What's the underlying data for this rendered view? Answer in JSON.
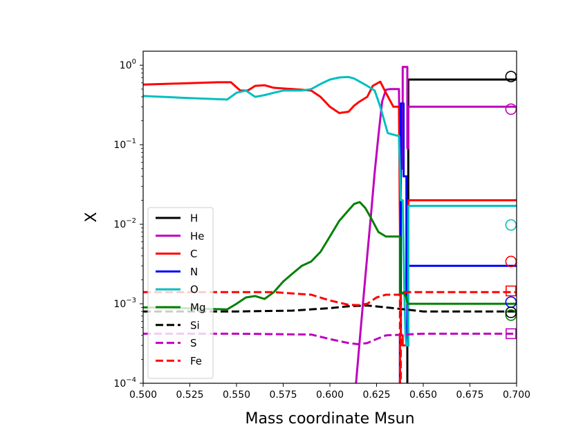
{
  "chart_data": {
    "type": "line",
    "title": "",
    "xlabel": "Mass coordinate Msun",
    "ylabel": "X",
    "xlim": [
      0.5,
      0.7
    ],
    "ylim": [
      0.0001,
      1.5
    ],
    "yscale": "log",
    "grid": false,
    "legend_position": "lower-left",
    "x_ticks": [
      "0.500",
      "0.525",
      "0.550",
      "0.575",
      "0.600",
      "0.625",
      "0.650",
      "0.675",
      "0.700"
    ],
    "x_tick_values": [
      0.5,
      0.525,
      0.55,
      0.575,
      0.6,
      0.625,
      0.65,
      0.675,
      0.7
    ],
    "y_ticks": [
      {
        "value": 0.0001,
        "base": "10",
        "exp": "−4"
      },
      {
        "value": 0.001,
        "base": "10",
        "exp": "−3"
      },
      {
        "value": 0.01,
        "base": "10",
        "exp": "−2"
      },
      {
        "value": 0.1,
        "base": "10",
        "exp": "−1"
      },
      {
        "value": 1,
        "base": "10",
        "exp": "0"
      }
    ],
    "series": [
      {
        "name": "H",
        "color": "#000000",
        "dash": false,
        "x": [
          0.6415,
          0.6415,
          0.642,
          0.642,
          0.7
        ],
        "y": [
          0.0001,
          0.0003,
          0.0003,
          0.66,
          0.66
        ]
      },
      {
        "name": "He",
        "color": "#bf00bf",
        "dash": false,
        "x": [
          0.614,
          0.616,
          0.618,
          0.62,
          0.622,
          0.624,
          0.626,
          0.628,
          0.63,
          0.632,
          0.635,
          0.637,
          0.6375,
          0.639,
          0.639,
          0.6415,
          0.6415,
          0.642,
          0.642,
          0.7
        ],
        "y": [
          0.0001,
          0.00035,
          0.0012,
          0.004,
          0.013,
          0.045,
          0.13,
          0.35,
          0.49,
          0.5,
          0.5,
          0.5,
          0.05,
          0.05,
          0.95,
          0.95,
          0.09,
          0.09,
          0.3,
          0.3
        ]
      },
      {
        "name": "C",
        "color": "#ff0000",
        "dash": false,
        "x": [
          0.5,
          0.52,
          0.54,
          0.547,
          0.552,
          0.556,
          0.56,
          0.565,
          0.57,
          0.575,
          0.58,
          0.585,
          0.59,
          0.595,
          0.6,
          0.605,
          0.61,
          0.613,
          0.616,
          0.62,
          0.623,
          0.627,
          0.63,
          0.634,
          0.637,
          0.638,
          0.639,
          0.639,
          0.6415,
          0.642,
          0.642,
          0.7
        ],
        "y": [
          0.57,
          0.59,
          0.61,
          0.61,
          0.48,
          0.48,
          0.55,
          0.56,
          0.52,
          0.51,
          0.5,
          0.49,
          0.48,
          0.4,
          0.3,
          0.25,
          0.26,
          0.31,
          0.35,
          0.4,
          0.55,
          0.62,
          0.45,
          0.3,
          0.3,
          0.0004,
          0.0004,
          0.0003,
          0.0003,
          0.0003,
          0.02,
          0.02
        ]
      },
      {
        "name": "N",
        "color": "#0000ff",
        "dash": false,
        "x": [
          0.6375,
          0.6375,
          0.638,
          0.638,
          0.6395,
          0.6395,
          0.641,
          0.641,
          0.6415,
          0.6415,
          0.642,
          0.642,
          0.7
        ],
        "y": [
          0.0001,
          0.0004,
          0.0004,
          0.33,
          0.33,
          0.04,
          0.04,
          0.0012,
          0.0012,
          0.0003,
          0.0003,
          0.003,
          0.003
        ]
      },
      {
        "name": "O",
        "color": "#00bfbf",
        "dash": false,
        "x": [
          0.5,
          0.52,
          0.545,
          0.55,
          0.555,
          0.56,
          0.565,
          0.57,
          0.575,
          0.58,
          0.585,
          0.59,
          0.595,
          0.6,
          0.605,
          0.61,
          0.613,
          0.616,
          0.62,
          0.624,
          0.627,
          0.631,
          0.636,
          0.637,
          0.638,
          0.639,
          0.64,
          0.6405,
          0.641,
          0.6415,
          0.642,
          0.642,
          0.7
        ],
        "y": [
          0.41,
          0.39,
          0.37,
          0.45,
          0.48,
          0.4,
          0.42,
          0.45,
          0.48,
          0.48,
          0.48,
          0.5,
          0.58,
          0.66,
          0.7,
          0.71,
          0.68,
          0.62,
          0.55,
          0.48,
          0.3,
          0.14,
          0.13,
          0.13,
          0.02,
          0.02,
          0.0011,
          0.0004,
          0.0003,
          0.0003,
          0.0003,
          0.017,
          0.017
        ]
      },
      {
        "name": "Mg",
        "color": "#008000",
        "dash": false,
        "x": [
          0.5,
          0.52,
          0.545,
          0.55,
          0.555,
          0.56,
          0.565,
          0.57,
          0.575,
          0.58,
          0.585,
          0.59,
          0.595,
          0.6,
          0.605,
          0.61,
          0.613,
          0.616,
          0.619,
          0.622,
          0.626,
          0.63,
          0.634,
          0.637,
          0.6375,
          0.6375,
          0.638,
          0.6395,
          0.64,
          0.641,
          0.6415,
          0.642,
          0.642,
          0.7
        ],
        "y": [
          0.0009,
          0.00088,
          0.00085,
          0.001,
          0.0012,
          0.00125,
          0.00115,
          0.0014,
          0.0019,
          0.0024,
          0.003,
          0.0034,
          0.0045,
          0.007,
          0.011,
          0.015,
          0.018,
          0.019,
          0.016,
          0.012,
          0.008,
          0.007,
          0.007,
          0.007,
          0.007,
          0.0013,
          0.0013,
          0.0014,
          0.0013,
          0.0012,
          0.001,
          0.001,
          0.001,
          0.001
        ]
      },
      {
        "name": "Si",
        "color": "#000000",
        "dash": true,
        "x": [
          0.5,
          0.55,
          0.58,
          0.6,
          0.61,
          0.62,
          0.63,
          0.64,
          0.65,
          0.7
        ],
        "y": [
          0.0008,
          0.0008,
          0.00082,
          0.00088,
          0.00093,
          0.00095,
          0.0009,
          0.00085,
          0.0008,
          0.0008
        ]
      },
      {
        "name": "S",
        "color": "#bf00bf",
        "dash": true,
        "x": [
          0.5,
          0.55,
          0.59,
          0.6,
          0.61,
          0.615,
          0.62,
          0.625,
          0.63,
          0.64,
          0.65,
          0.7
        ],
        "y": [
          0.00042,
          0.00042,
          0.00041,
          0.00036,
          0.00032,
          0.00031,
          0.00032,
          0.00036,
          0.0004,
          0.00041,
          0.00042,
          0.00042
        ]
      },
      {
        "name": "Fe",
        "color": "#ff0000",
        "dash": true,
        "x": [
          0.5,
          0.57,
          0.59,
          0.6,
          0.61,
          0.615,
          0.62,
          0.625,
          0.63,
          0.637,
          0.6375,
          0.6375,
          0.638,
          0.638,
          0.639,
          0.64,
          0.65,
          0.7
        ],
        "y": [
          0.0014,
          0.0014,
          0.0013,
          0.0011,
          0.00097,
          0.00096,
          0.001,
          0.0012,
          0.0013,
          0.0013,
          0.0013,
          0.0001,
          0.0001,
          0.0013,
          0.0013,
          0.0014,
          0.0014,
          0.0014
        ]
      }
    ],
    "markers": [
      {
        "series": "H",
        "shape": "circle",
        "color": "#000000",
        "x": 0.697,
        "y": 0.72
      },
      {
        "series": "He",
        "shape": "circle",
        "color": "#bf00bf",
        "x": 0.697,
        "y": 0.28
      },
      {
        "series": "O",
        "shape": "circle",
        "color": "#00bfbf",
        "x": 0.697,
        "y": 0.0098
      },
      {
        "series": "C",
        "shape": "circle",
        "color": "#ff0000",
        "x": 0.697,
        "y": 0.0034
      },
      {
        "series": "Fe",
        "shape": "square",
        "color": "#ff0000",
        "x": 0.697,
        "y": 0.00145
      },
      {
        "series": "N",
        "shape": "circle",
        "color": "#0000ff",
        "x": 0.697,
        "y": 0.00105
      },
      {
        "series": "Mg",
        "shape": "circle",
        "color": "#008000",
        "x": 0.697,
        "y": 0.00072
      },
      {
        "series": "Si",
        "shape": "circle",
        "color": "#000000",
        "x": 0.697,
        "y": 0.00078
      },
      {
        "series": "S",
        "shape": "square",
        "color": "#bf00bf",
        "x": 0.697,
        "y": 0.00042
      }
    ]
  }
}
